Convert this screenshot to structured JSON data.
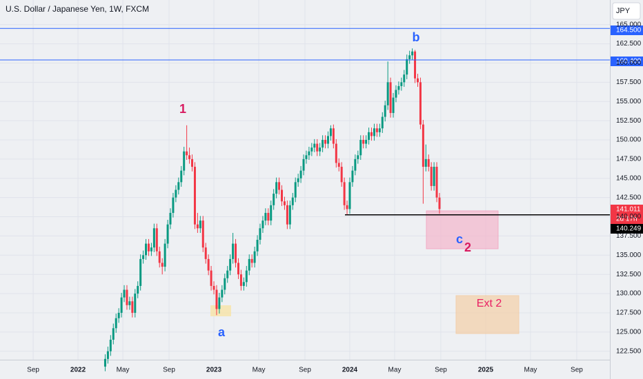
{
  "chart_data": {
    "type": "candlestick",
    "title": "U.S. Dollar / Japanese Yen, 1W, FXCM",
    "currency": "JPY",
    "xlim": [
      2021.426,
      2025.914
    ],
    "ylim": [
      121.4,
      168.2
    ],
    "xticks": [
      {
        "value": 2021.67,
        "label": "Sep"
      },
      2022,
      {
        "value": 2022.33,
        "label": "May"
      },
      {
        "value": 2022.67,
        "label": "Sep"
      },
      2023,
      {
        "value": 2023.33,
        "label": "May"
      },
      {
        "value": 2023.67,
        "label": "Sep"
      },
      2024,
      {
        "value": 2024.33,
        "label": "May"
      },
      {
        "value": 2024.67,
        "label": "Sep"
      },
      2025,
      {
        "value": 2025.33,
        "label": "May"
      },
      {
        "value": 2025.67,
        "label": "Sep"
      }
    ],
    "yticks": [
      {
        "value": 122.5,
        "label": "122.500"
      },
      {
        "value": 125,
        "label": "125.000"
      },
      {
        "value": 127.5,
        "label": "127.500"
      },
      {
        "value": 130,
        "label": "130.000"
      },
      {
        "value": 132.5,
        "label": "132.500"
      },
      {
        "value": 135,
        "label": "135.000"
      },
      {
        "value": 137.5,
        "label": "137.500"
      },
      {
        "value": 140,
        "label": "140.000"
      },
      {
        "value": 142.5,
        "label": "142.500"
      },
      {
        "value": 145,
        "label": "145.000"
      },
      {
        "value": 147.5,
        "label": "147.500"
      },
      {
        "value": 150,
        "label": "150.000"
      },
      {
        "value": 152.5,
        "label": "152.500"
      },
      {
        "value": 155,
        "label": "155.000"
      },
      {
        "value": 157.5,
        "label": "157.500"
      },
      {
        "value": 160,
        "label": "160.000"
      },
      {
        "value": 162.5,
        "label": "162.500"
      },
      {
        "value": 165,
        "label": "165.000"
      }
    ],
    "up_color": "#089981",
    "down_color": "#f23645",
    "x": [
      2022.2,
      2022.22,
      2022.24,
      2022.26,
      2022.28,
      2022.3,
      2022.32,
      2022.34,
      2022.36,
      2022.38,
      2022.4,
      2022.42,
      2022.44,
      2022.46,
      2022.48,
      2022.5,
      2022.52,
      2022.54,
      2022.56,
      2022.58,
      2022.6,
      2022.62,
      2022.64,
      2022.66,
      2022.68,
      2022.7,
      2022.72,
      2022.74,
      2022.76,
      2022.78,
      2022.8,
      2022.82,
      2022.84,
      2022.86,
      2022.88,
      2022.9,
      2022.92,
      2022.94,
      2022.96,
      2022.98,
      2023.0,
      2023.02,
      2023.04,
      2023.06,
      2023.08,
      2023.1,
      2023.12,
      2023.14,
      2023.16,
      2023.18,
      2023.2,
      2023.22,
      2023.24,
      2023.26,
      2023.28,
      2023.3,
      2023.32,
      2023.34,
      2023.36,
      2023.38,
      2023.4,
      2023.42,
      2023.44,
      2023.46,
      2023.48,
      2023.5,
      2023.52,
      2023.54,
      2023.56,
      2023.58,
      2023.6,
      2023.62,
      2023.64,
      2023.66,
      2023.68,
      2023.7,
      2023.72,
      2023.74,
      2023.76,
      2023.78,
      2023.8,
      2023.82,
      2023.84,
      2023.86,
      2023.88,
      2023.9,
      2023.92,
      2023.94,
      2023.96,
      2023.98,
      2024.0,
      2024.02,
      2024.04,
      2024.06,
      2024.08,
      2024.1,
      2024.12,
      2024.14,
      2024.16,
      2024.18,
      2024.2,
      2024.22,
      2024.24,
      2024.26,
      2024.28,
      2024.3,
      2024.32,
      2024.34,
      2024.36,
      2024.38,
      2024.4,
      2024.42,
      2024.44,
      2024.46,
      2024.48,
      2024.5,
      2024.52,
      2024.54,
      2024.56,
      2024.58,
      2024.6,
      2024.62,
      2024.64,
      2024.66
    ],
    "open": [
      120.5,
      121.5,
      122.5,
      124.0,
      125.5,
      126.8,
      127.5,
      129.5,
      130.5,
      128.5,
      129.0,
      127.5,
      130.0,
      131.0,
      134.5,
      135.0,
      136.5,
      135.5,
      136.0,
      138.5,
      135.5,
      134.0,
      133.5,
      136.5,
      139.0,
      140.5,
      142.5,
      143.5,
      144.5,
      146.0,
      148.5,
      148.0,
      147.5,
      146.5,
      139.0,
      138.5,
      139.5,
      136.0,
      134.5,
      133.0,
      131.0,
      130.5,
      128.0,
      129.5,
      130.5,
      132.0,
      133.0,
      134.5,
      136.5,
      134.0,
      132.5,
      131.0,
      131.5,
      133.0,
      134.5,
      134.0,
      135.5,
      137.0,
      138.5,
      139.5,
      140.5,
      139.5,
      141.5,
      143.0,
      144.5,
      143.5,
      142.0,
      141.5,
      139.0,
      141.5,
      142.5,
      144.5,
      145.0,
      146.0,
      147.5,
      148.0,
      148.5,
      149.0,
      149.5,
      148.5,
      149.0,
      150.0,
      149.5,
      150.5,
      151.5,
      149.5,
      147.0,
      146.5,
      144.5,
      141.5,
      141.0,
      144.5,
      146.0,
      147.5,
      148.0,
      150.0,
      149.5,
      150.0,
      151.0,
      150.5,
      151.5,
      151.0,
      151.5,
      153.0,
      154.5,
      157.5,
      153.5,
      155.5,
      156.5,
      157.0,
      157.5,
      158.5,
      160.5,
      161.0,
      161.5,
      158.0,
      157.5,
      152.0,
      146.5,
      147.5,
      146.5,
      144.0,
      146.5,
      142.5
    ],
    "high": [
      122.1,
      123.1,
      124.6,
      126.1,
      127.4,
      128.1,
      130.1,
      131.1,
      131.1,
      129.6,
      129.6,
      130.6,
      131.6,
      135.1,
      135.6,
      137.1,
      137.1,
      136.6,
      139.1,
      139.1,
      136.1,
      134.6,
      137.1,
      139.6,
      141.1,
      143.1,
      144.1,
      145.1,
      146.6,
      149.1,
      151.9,
      149.0,
      148.1,
      147.1,
      140.5,
      140.1,
      140.1,
      136.6,
      135.1,
      133.6,
      131.6,
      131.1,
      130.1,
      131.1,
      132.6,
      133.6,
      135.1,
      137.9,
      137.1,
      134.6,
      133.1,
      132.1,
      133.6,
      135.1,
      135.1,
      136.1,
      137.6,
      139.1,
      140.1,
      141.1,
      141.1,
      142.1,
      143.6,
      145.1,
      145.1,
      144.1,
      142.6,
      142.1,
      142.1,
      143.1,
      145.1,
      145.6,
      146.6,
      148.1,
      148.6,
      149.1,
      149.6,
      150.1,
      150.1,
      149.6,
      150.6,
      150.6,
      151.1,
      151.9,
      152.0,
      150.1,
      147.6,
      147.1,
      145.1,
      142.1,
      145.1,
      146.6,
      148.1,
      148.6,
      150.6,
      150.6,
      150.6,
      151.6,
      151.6,
      152.1,
      152.1,
      152.1,
      153.6,
      155.1,
      160.2,
      158.1,
      156.1,
      157.1,
      157.6,
      158.1,
      159.1,
      161.1,
      161.6,
      161.9,
      161.7,
      158.6,
      158.1,
      152.6,
      149.4,
      148.1,
      147.1,
      147.1,
      147.1,
      143.1
    ],
    "low": [
      119.9,
      120.9,
      121.9,
      123.4,
      124.9,
      126.2,
      126.9,
      128.9,
      127.9,
      127.9,
      126.9,
      126.9,
      129.4,
      130.4,
      133.9,
      134.4,
      134.9,
      134.9,
      135.4,
      134.9,
      133.4,
      132.5,
      132.9,
      135.9,
      138.4,
      139.9,
      141.9,
      142.9,
      143.9,
      145.4,
      147.4,
      146.9,
      145.9,
      138.4,
      137.9,
      137.9,
      135.4,
      133.9,
      132.4,
      130.4,
      129.9,
      127.2,
      127.4,
      128.9,
      129.9,
      131.4,
      132.4,
      133.9,
      133.4,
      131.9,
      130.4,
      130.4,
      130.9,
      132.4,
      133.4,
      133.4,
      134.9,
      136.4,
      137.9,
      138.9,
      138.9,
      138.9,
      140.9,
      142.4,
      142.9,
      141.4,
      140.9,
      138.4,
      138.4,
      140.9,
      141.9,
      143.9,
      144.4,
      145.4,
      146.9,
      147.4,
      147.9,
      148.4,
      147.9,
      147.9,
      148.4,
      148.9,
      148.9,
      149.9,
      148.9,
      146.4,
      145.9,
      143.9,
      140.9,
      140.2,
      140.4,
      143.9,
      145.4,
      146.9,
      147.4,
      148.9,
      148.9,
      149.4,
      149.9,
      149.9,
      150.4,
      150.4,
      150.9,
      152.4,
      153.9,
      152.9,
      152.9,
      154.9,
      155.9,
      156.4,
      156.9,
      157.9,
      159.9,
      160.4,
      157.4,
      156.9,
      151.4,
      141.7,
      145.9,
      145.9,
      143.4,
      143.4,
      141.9,
      140.4
    ],
    "close": [
      121.5,
      122.5,
      124.0,
      125.5,
      126.8,
      127.5,
      129.5,
      130.5,
      128.5,
      129.0,
      127.5,
      130.0,
      131.0,
      134.5,
      135.0,
      136.5,
      135.5,
      136.0,
      138.5,
      135.5,
      134.0,
      133.5,
      136.5,
      139.0,
      140.5,
      142.5,
      143.5,
      144.5,
      146.0,
      148.5,
      148.0,
      147.5,
      146.5,
      139.0,
      138.5,
      139.5,
      136.0,
      134.5,
      133.0,
      131.0,
      130.5,
      128.0,
      129.5,
      130.5,
      132.0,
      133.0,
      134.5,
      136.5,
      134.0,
      132.5,
      131.0,
      131.5,
      133.0,
      134.5,
      134.0,
      135.5,
      137.0,
      138.5,
      139.5,
      140.5,
      139.5,
      141.5,
      143.0,
      144.5,
      143.5,
      142.0,
      141.5,
      139.0,
      141.5,
      142.5,
      144.5,
      145.0,
      146.0,
      147.5,
      148.0,
      148.5,
      149.0,
      149.5,
      148.5,
      149.0,
      150.0,
      149.5,
      150.5,
      151.5,
      149.5,
      147.0,
      146.5,
      144.5,
      141.5,
      141.0,
      144.5,
      146.0,
      147.5,
      148.0,
      150.0,
      149.5,
      150.0,
      151.0,
      150.5,
      151.5,
      151.0,
      151.5,
      153.0,
      154.5,
      157.5,
      153.5,
      155.5,
      156.5,
      157.0,
      157.5,
      158.5,
      160.5,
      161.0,
      161.5,
      158.0,
      157.5,
      152.0,
      146.5,
      147.5,
      146.5,
      144.0,
      146.5,
      142.5,
      141.0
    ],
    "levels": [
      {
        "value": 164.5,
        "label": "164.500",
        "color": "#2962ff"
      },
      {
        "value": 160.4,
        "label": "160.400",
        "color": "#2962ff"
      },
      {
        "value": 140.249,
        "color": "#000000"
      }
    ],
    "last_price": {
      "value": 141.011,
      "countdown": "2d 17h"
    },
    "annotations": {
      "wave_1": "1",
      "wave_a": "a",
      "wave_b": "b",
      "wave_c": "c",
      "wave_2": "2",
      "extension": "Ext 2"
    }
  }
}
